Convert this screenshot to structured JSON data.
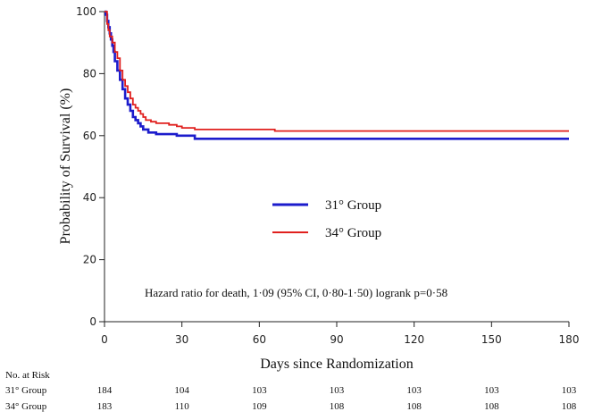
{
  "chart_data": {
    "type": "line",
    "subtype": "kaplan-meier step",
    "title": "",
    "xlabel": "Days since Randomization",
    "ylabel": "Probability of Survival (%)",
    "xlim": [
      0,
      180
    ],
    "ylim": [
      0,
      100
    ],
    "x_ticks": [
      0,
      30,
      60,
      90,
      120,
      150,
      180
    ],
    "y_ticks": [
      0,
      20,
      40,
      60,
      80,
      100
    ],
    "grid": false,
    "legend_position": "center-left",
    "annotation": "Hazard ratio for death, 1·09 (95% CI, 0·80-1·50) logrank p=0·58",
    "series": [
      {
        "name": "31° Group",
        "color": "#1c1ccc",
        "x": [
          0,
          0.5,
          1,
          1.5,
          2,
          2.5,
          3,
          3.5,
          4,
          5,
          6,
          7,
          8,
          9,
          10,
          11,
          12,
          13,
          14,
          15,
          17,
          20,
          25,
          28,
          35,
          60,
          90,
          120,
          180
        ],
        "y": [
          100,
          99,
          97,
          95,
          93,
          91,
          89,
          87,
          84,
          81,
          78,
          75,
          72,
          70,
          68,
          66,
          65,
          64,
          63,
          62,
          61,
          60.5,
          60.5,
          60,
          59,
          59,
          59,
          59,
          59
        ]
      },
      {
        "name": "34° Group",
        "color": "#e0201e",
        "x": [
          0,
          1,
          1.5,
          2,
          3,
          4,
          5,
          6,
          7,
          8,
          9,
          10,
          11,
          12,
          13,
          14,
          15,
          16,
          18,
          20,
          25,
          28,
          30,
          35,
          66,
          90,
          120,
          180
        ],
        "y": [
          100,
          96,
          94,
          92,
          90,
          87,
          85,
          81,
          78,
          76,
          74,
          72,
          70,
          69,
          68,
          67,
          66,
          65,
          64.5,
          64,
          63.5,
          63,
          62.5,
          62,
          61.5,
          61.5,
          61.5,
          61.5
        ]
      }
    ],
    "risk_table": {
      "title": "No. at Risk",
      "timepoints": [
        0,
        30,
        60,
        90,
        120,
        150,
        180
      ],
      "rows": [
        {
          "label": "31° Group",
          "values": [
            184,
            104,
            103,
            103,
            103,
            103,
            103
          ]
        },
        {
          "label": "34° Group",
          "values": [
            183,
            110,
            109,
            108,
            108,
            108,
            108
          ]
        }
      ]
    }
  }
}
